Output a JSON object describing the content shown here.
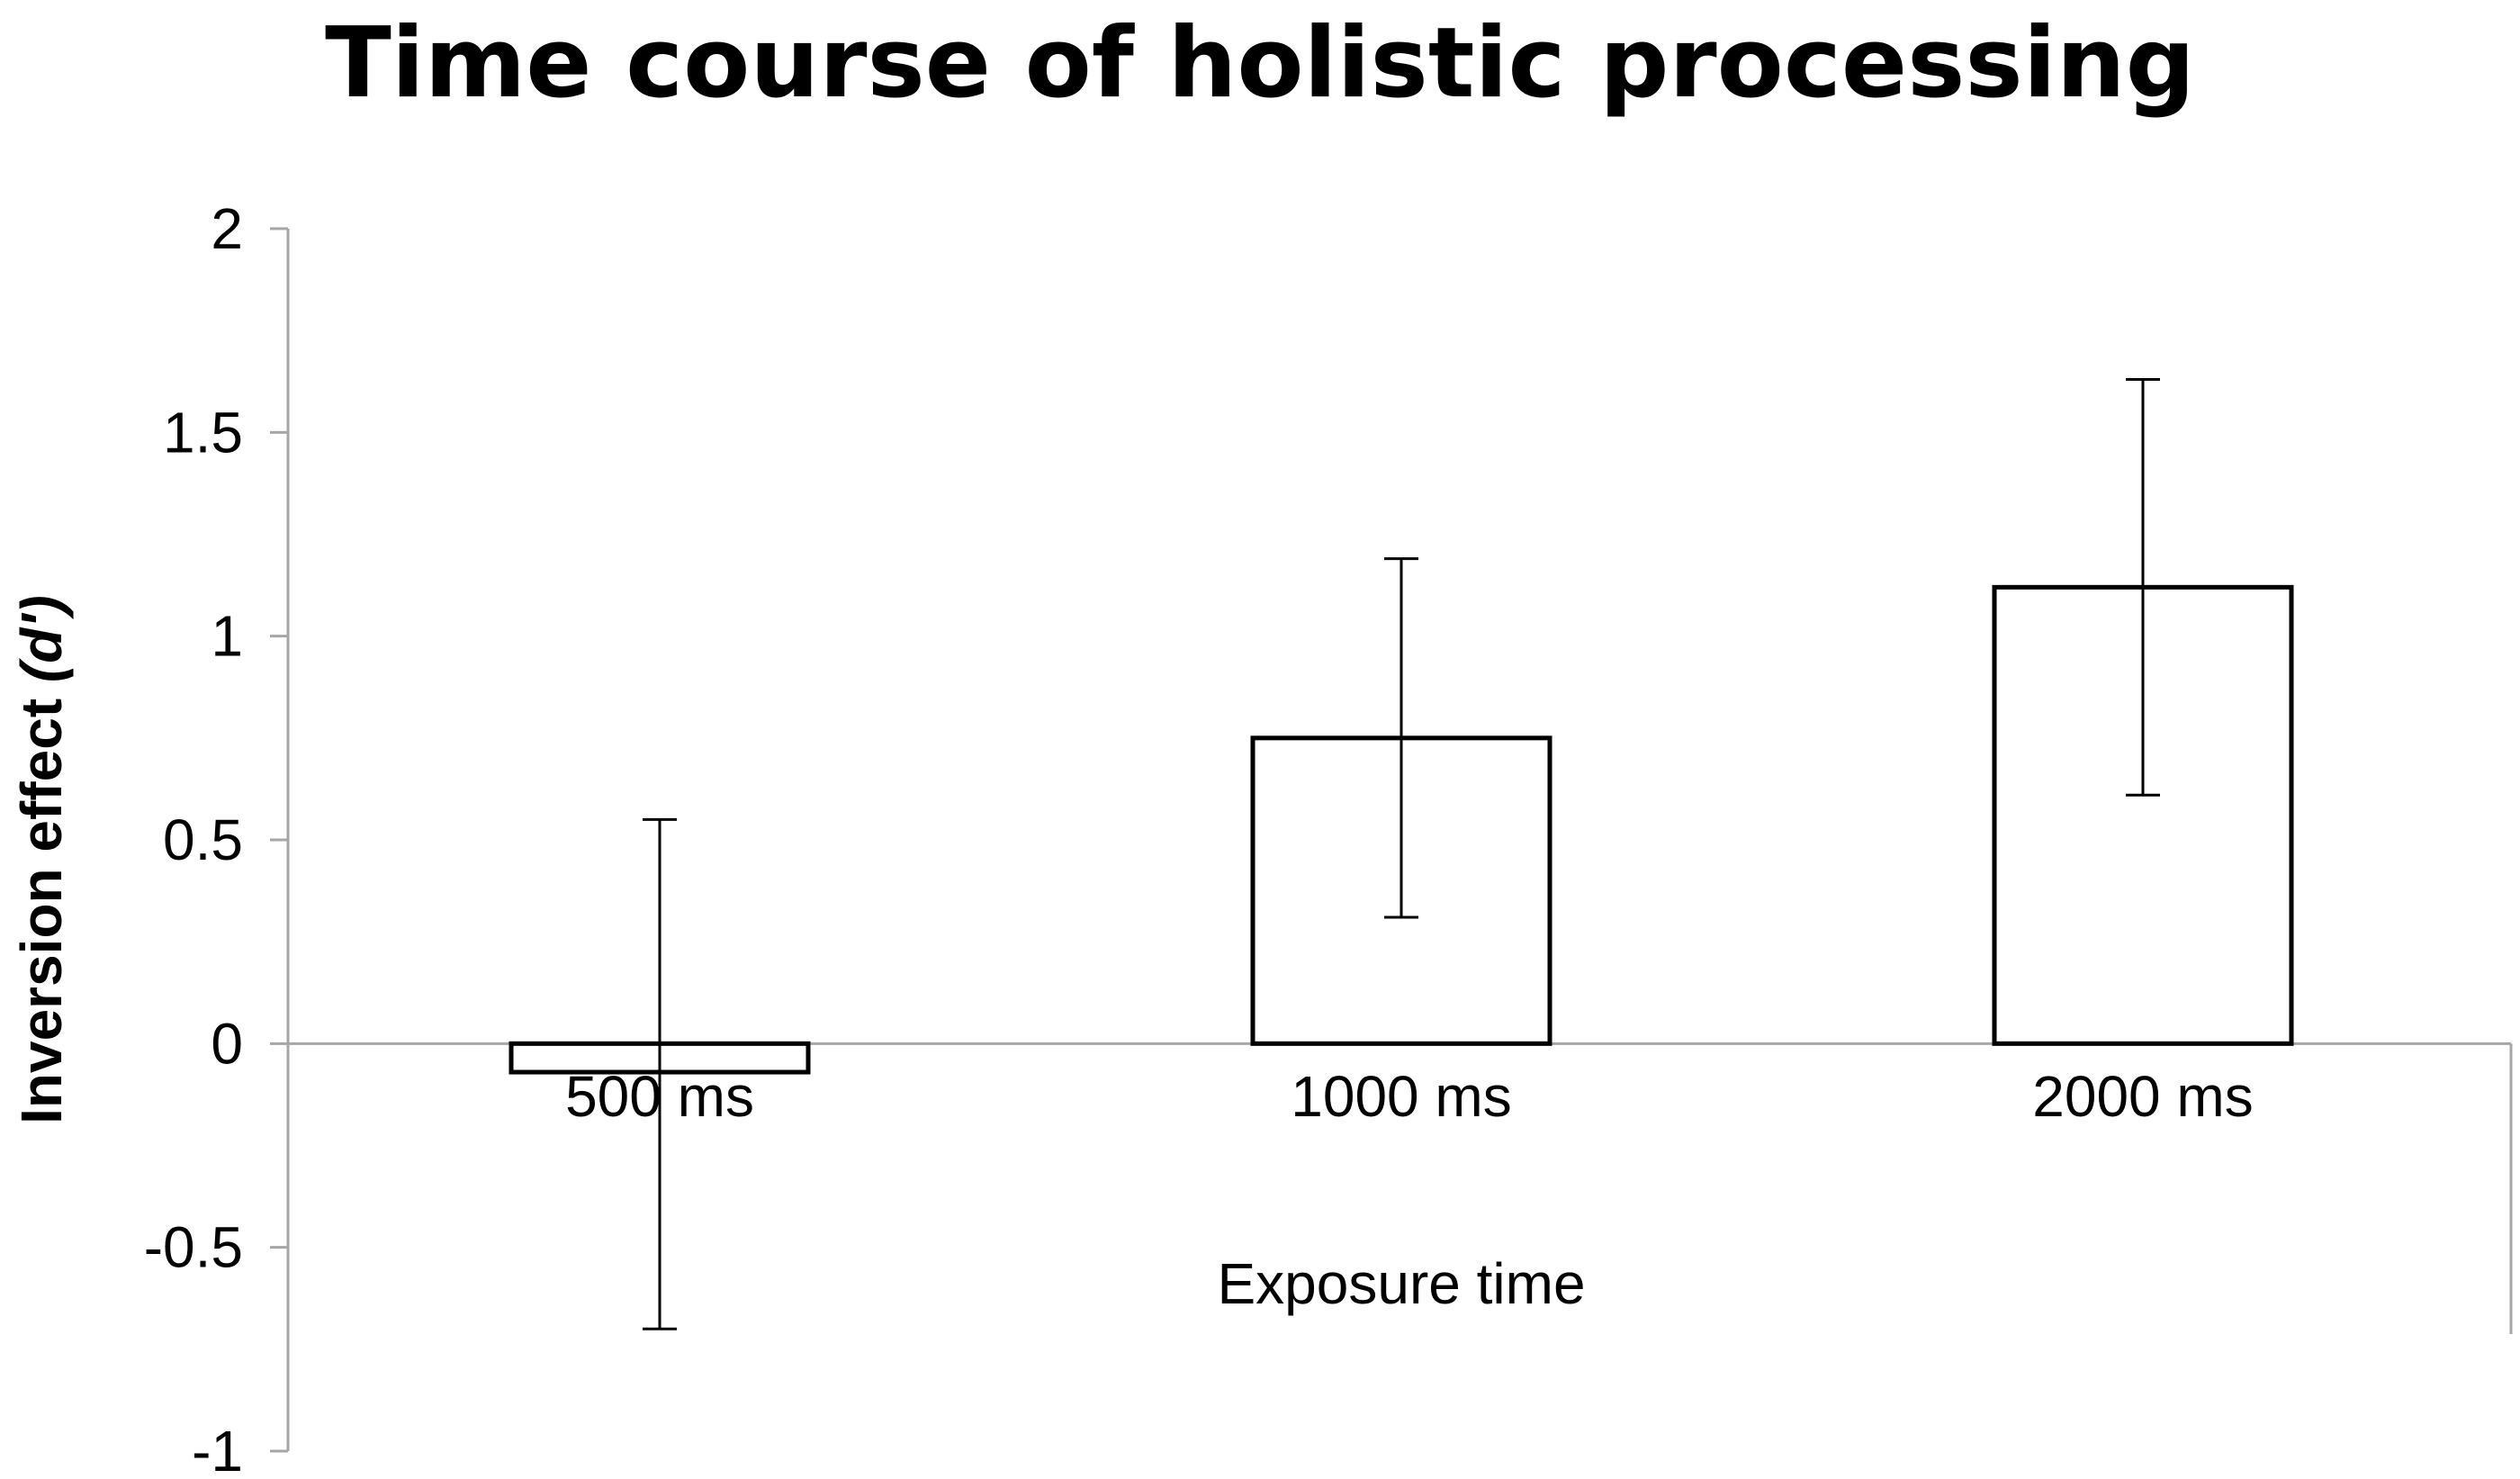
{
  "colors": {
    "axis": "#a6a6a6",
    "bar_fill": "#ffffff",
    "bar_stroke": "#000000",
    "error_bar": "#000000",
    "text": "#000000"
  },
  "chart_data": {
    "type": "bar",
    "title": "Time course of holistic processing",
    "xlabel": "Exposure time",
    "ylabel": "Inversion effect (d')",
    "ylabel_parts": {
      "main": "Inversion effect ",
      "italic": "(d')"
    },
    "categories": [
      "500 ms",
      "1000 ms",
      "2000 ms"
    ],
    "series": [
      {
        "values": [
          -0.07,
          0.75,
          1.12
        ],
        "error_upper": [
          0.55,
          1.19,
          1.63
        ],
        "error_lower": [
          -0.7,
          0.31,
          0.61
        ]
      }
    ],
    "ylim": [
      -1,
      2
    ],
    "yticks": [
      2,
      1.5,
      1,
      0.5,
      0,
      -0.5,
      -1
    ],
    "ytick_labels": [
      "2",
      "1.5",
      "1",
      "0.5",
      "0",
      "-0.5",
      "-1"
    ],
    "grid": false,
    "legend": "none"
  }
}
